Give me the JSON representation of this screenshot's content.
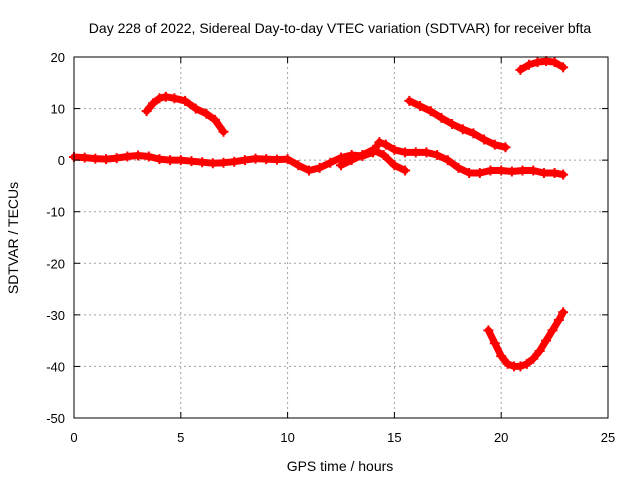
{
  "chart_data": {
    "type": "scatter",
    "title": "Day 228 of 2022, Sidereal Day-to-day VTEC variation (SDTVAR) for receiver bfta",
    "xlabel": "GPS time / hours",
    "ylabel": "SDTVAR / TECUs",
    "xlim": [
      0,
      25
    ],
    "ylim": [
      -50,
      20
    ],
    "xticks": [
      0,
      5,
      10,
      15,
      20,
      25
    ],
    "yticks": [
      -50,
      -40,
      -30,
      -20,
      -10,
      0,
      10,
      20
    ],
    "grid": true,
    "marker_color": "#ff0000",
    "series": [
      {
        "name": "track-main",
        "points": [
          [
            0,
            0.6
          ],
          [
            0.5,
            0.5
          ],
          [
            1,
            0.3
          ],
          [
            1.5,
            0.2
          ],
          [
            2,
            0.4
          ],
          [
            2.5,
            0.7
          ],
          [
            3,
            0.9
          ],
          [
            3.5,
            0.7
          ],
          [
            4,
            0.2
          ],
          [
            4.5,
            0.0
          ],
          [
            5,
            0.0
          ],
          [
            5.5,
            -0.2
          ],
          [
            6,
            -0.4
          ],
          [
            6.5,
            -0.6
          ],
          [
            7,
            -0.5
          ],
          [
            7.5,
            -0.3
          ],
          [
            8,
            0.0
          ],
          [
            8.5,
            0.3
          ],
          [
            9,
            0.2
          ],
          [
            9.5,
            0.1
          ],
          [
            10,
            0.2
          ],
          [
            10.5,
            -1.0
          ],
          [
            11,
            -2.0
          ],
          [
            11.5,
            -1.5
          ],
          [
            12,
            -0.5
          ],
          [
            12.5,
            0.5
          ],
          [
            13,
            1.0
          ],
          [
            13.5,
            0.8
          ],
          [
            14,
            1.5
          ],
          [
            14.3,
            3.5
          ],
          [
            14.6,
            3.0
          ],
          [
            15,
            2.0
          ],
          [
            15.5,
            1.5
          ],
          [
            16,
            1.5
          ],
          [
            16.5,
            1.5
          ],
          [
            17,
            1.0
          ],
          [
            17.5,
            0.0
          ],
          [
            18,
            -1.5
          ],
          [
            18.5,
            -2.5
          ],
          [
            19,
            -2.5
          ],
          [
            19.5,
            -2.0
          ],
          [
            20,
            -2.0
          ],
          [
            20.5,
            -2.2
          ],
          [
            21,
            -2.0
          ],
          [
            21.5,
            -2.0
          ],
          [
            22,
            -2.5
          ],
          [
            22.5,
            -2.5
          ],
          [
            22.9,
            -2.8
          ]
        ]
      },
      {
        "name": "track-secondary",
        "points": [
          [
            12.5,
            -1.0
          ],
          [
            13,
            0.0
          ],
          [
            13.5,
            1.0
          ],
          [
            14,
            2.0
          ],
          [
            14.5,
            1.0
          ],
          [
            15,
            -1.0
          ],
          [
            15.5,
            -2.0
          ]
        ]
      },
      {
        "name": "track-upper-left",
        "points": [
          [
            3.4,
            9.5
          ],
          [
            3.7,
            11.0
          ],
          [
            4.0,
            12.0
          ],
          [
            4.3,
            12.3
          ],
          [
            4.7,
            12.0
          ],
          [
            5.2,
            11.5
          ],
          [
            5.7,
            10.0
          ],
          [
            6.2,
            9.0
          ],
          [
            6.6,
            7.8
          ],
          [
            7.0,
            5.5
          ]
        ]
      },
      {
        "name": "track-upper-mid",
        "points": [
          [
            15.7,
            11.5
          ],
          [
            16.2,
            10.5
          ],
          [
            16.7,
            9.5
          ],
          [
            17.2,
            8.2
          ],
          [
            17.7,
            7.0
          ],
          [
            18.2,
            6.0
          ],
          [
            18.7,
            5.2
          ],
          [
            19.2,
            4.0
          ],
          [
            19.7,
            3.0
          ],
          [
            20.2,
            2.5
          ]
        ]
      },
      {
        "name": "track-top-right",
        "points": [
          [
            20.9,
            17.5
          ],
          [
            21.3,
            18.5
          ],
          [
            21.7,
            19.0
          ],
          [
            22.1,
            19.2
          ],
          [
            22.5,
            19.0
          ],
          [
            22.9,
            18.0
          ]
        ]
      },
      {
        "name": "track-lower-right",
        "points": [
          [
            19.4,
            -33.0
          ],
          [
            19.7,
            -35.5
          ],
          [
            20.0,
            -38.0
          ],
          [
            20.3,
            -39.5
          ],
          [
            20.6,
            -40.0
          ],
          [
            20.9,
            -40.0
          ],
          [
            21.2,
            -39.5
          ],
          [
            21.5,
            -38.5
          ],
          [
            21.8,
            -37.0
          ],
          [
            22.1,
            -35.0
          ],
          [
            22.4,
            -33.0
          ],
          [
            22.7,
            -31.0
          ],
          [
            22.9,
            -29.5
          ]
        ]
      }
    ]
  }
}
